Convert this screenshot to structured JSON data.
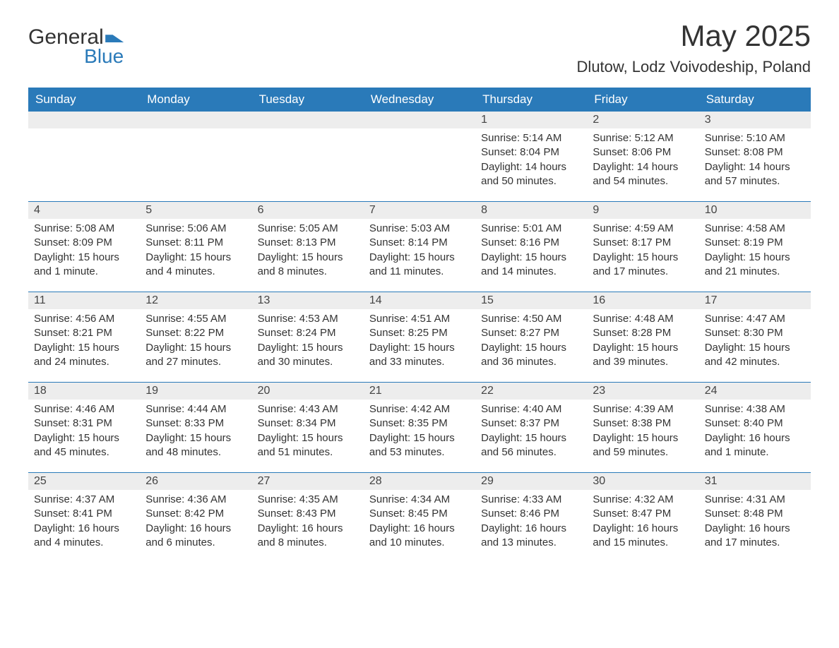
{
  "logo": {
    "line1": "General",
    "line2": "Blue"
  },
  "title": "May 2025",
  "location": "Dlutow, Lodz Voivodeship, Poland",
  "colors": {
    "header_bg": "#2a7ab9",
    "header_text": "#ffffff",
    "row_divider": "#2a7ab9",
    "daynum_bg": "#ededed",
    "body_text": "#333333",
    "page_bg": "#ffffff"
  },
  "day_headers": [
    "Sunday",
    "Monday",
    "Tuesday",
    "Wednesday",
    "Thursday",
    "Friday",
    "Saturday"
  ],
  "cell_labels": {
    "sunrise": "Sunrise: ",
    "sunset": "Sunset: ",
    "daylight": "Daylight: "
  },
  "weeks": [
    [
      null,
      null,
      null,
      null,
      {
        "n": "1",
        "sr": "5:14 AM",
        "ss": "8:04 PM",
        "dl": "14 hours and 50 minutes."
      },
      {
        "n": "2",
        "sr": "5:12 AM",
        "ss": "8:06 PM",
        "dl": "14 hours and 54 minutes."
      },
      {
        "n": "3",
        "sr": "5:10 AM",
        "ss": "8:08 PM",
        "dl": "14 hours and 57 minutes."
      }
    ],
    [
      {
        "n": "4",
        "sr": "5:08 AM",
        "ss": "8:09 PM",
        "dl": "15 hours and 1 minute."
      },
      {
        "n": "5",
        "sr": "5:06 AM",
        "ss": "8:11 PM",
        "dl": "15 hours and 4 minutes."
      },
      {
        "n": "6",
        "sr": "5:05 AM",
        "ss": "8:13 PM",
        "dl": "15 hours and 8 minutes."
      },
      {
        "n": "7",
        "sr": "5:03 AM",
        "ss": "8:14 PM",
        "dl": "15 hours and 11 minutes."
      },
      {
        "n": "8",
        "sr": "5:01 AM",
        "ss": "8:16 PM",
        "dl": "15 hours and 14 minutes."
      },
      {
        "n": "9",
        "sr": "4:59 AM",
        "ss": "8:17 PM",
        "dl": "15 hours and 17 minutes."
      },
      {
        "n": "10",
        "sr": "4:58 AM",
        "ss": "8:19 PM",
        "dl": "15 hours and 21 minutes."
      }
    ],
    [
      {
        "n": "11",
        "sr": "4:56 AM",
        "ss": "8:21 PM",
        "dl": "15 hours and 24 minutes."
      },
      {
        "n": "12",
        "sr": "4:55 AM",
        "ss": "8:22 PM",
        "dl": "15 hours and 27 minutes."
      },
      {
        "n": "13",
        "sr": "4:53 AM",
        "ss": "8:24 PM",
        "dl": "15 hours and 30 minutes."
      },
      {
        "n": "14",
        "sr": "4:51 AM",
        "ss": "8:25 PM",
        "dl": "15 hours and 33 minutes."
      },
      {
        "n": "15",
        "sr": "4:50 AM",
        "ss": "8:27 PM",
        "dl": "15 hours and 36 minutes."
      },
      {
        "n": "16",
        "sr": "4:48 AM",
        "ss": "8:28 PM",
        "dl": "15 hours and 39 minutes."
      },
      {
        "n": "17",
        "sr": "4:47 AM",
        "ss": "8:30 PM",
        "dl": "15 hours and 42 minutes."
      }
    ],
    [
      {
        "n": "18",
        "sr": "4:46 AM",
        "ss": "8:31 PM",
        "dl": "15 hours and 45 minutes."
      },
      {
        "n": "19",
        "sr": "4:44 AM",
        "ss": "8:33 PM",
        "dl": "15 hours and 48 minutes."
      },
      {
        "n": "20",
        "sr": "4:43 AM",
        "ss": "8:34 PM",
        "dl": "15 hours and 51 minutes."
      },
      {
        "n": "21",
        "sr": "4:42 AM",
        "ss": "8:35 PM",
        "dl": "15 hours and 53 minutes."
      },
      {
        "n": "22",
        "sr": "4:40 AM",
        "ss": "8:37 PM",
        "dl": "15 hours and 56 minutes."
      },
      {
        "n": "23",
        "sr": "4:39 AM",
        "ss": "8:38 PM",
        "dl": "15 hours and 59 minutes."
      },
      {
        "n": "24",
        "sr": "4:38 AM",
        "ss": "8:40 PM",
        "dl": "16 hours and 1 minute."
      }
    ],
    [
      {
        "n": "25",
        "sr": "4:37 AM",
        "ss": "8:41 PM",
        "dl": "16 hours and 4 minutes."
      },
      {
        "n": "26",
        "sr": "4:36 AM",
        "ss": "8:42 PM",
        "dl": "16 hours and 6 minutes."
      },
      {
        "n": "27",
        "sr": "4:35 AM",
        "ss": "8:43 PM",
        "dl": "16 hours and 8 minutes."
      },
      {
        "n": "28",
        "sr": "4:34 AM",
        "ss": "8:45 PM",
        "dl": "16 hours and 10 minutes."
      },
      {
        "n": "29",
        "sr": "4:33 AM",
        "ss": "8:46 PM",
        "dl": "16 hours and 13 minutes."
      },
      {
        "n": "30",
        "sr": "4:32 AM",
        "ss": "8:47 PM",
        "dl": "16 hours and 15 minutes."
      },
      {
        "n": "31",
        "sr": "4:31 AM",
        "ss": "8:48 PM",
        "dl": "16 hours and 17 minutes."
      }
    ]
  ]
}
